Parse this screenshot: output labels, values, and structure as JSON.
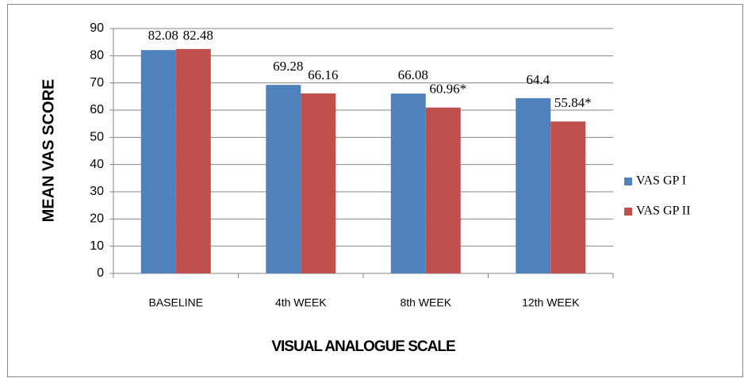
{
  "chart_data": {
    "type": "bar",
    "categories": [
      "BASELINE",
      "4th WEEK",
      "8th WEEK",
      "12th WEEK"
    ],
    "series": [
      {
        "name": "VAS GP I",
        "color": "#4f81bd",
        "values": [
          82.08,
          69.28,
          66.08,
          64.4
        ]
      },
      {
        "name": "VAS GP II",
        "color": "#c0504d",
        "values": [
          82.48,
          66.16,
          60.96,
          55.84
        ],
        "value_labels": [
          "82.48",
          "66.16",
          "60.96*",
          "55.84*"
        ]
      }
    ],
    "ylabel": "MEAN VAS  SCORE",
    "xlabel": "VISUAL ANALOGUE SCALE",
    "ylim": [
      0,
      90
    ],
    "yticks": [
      0,
      10,
      20,
      30,
      40,
      50,
      60,
      70,
      80,
      90
    ],
    "grid": true,
    "legend": "right"
  }
}
